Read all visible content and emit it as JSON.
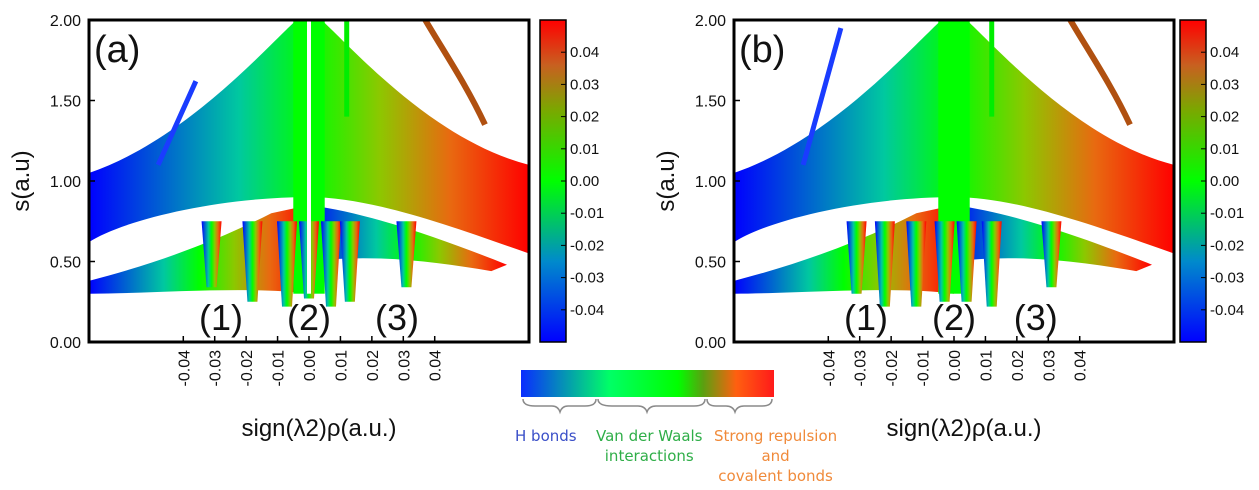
{
  "chart_data": [
    {
      "type": "scatter",
      "panel_label": "(a)",
      "xlabel": "sign(λ2)ρ(a.u.)",
      "ylabel": "s(a.u)",
      "x_ticks": [
        "-0.04",
        "-0.03",
        "-0.02",
        "-0.01",
        "0.00",
        "0.01",
        "0.02",
        "0.03",
        "0.04"
      ],
      "y_ticks": [
        "0.00",
        "0.50",
        "1.00",
        "1.50",
        "2.00"
      ],
      "xlim": [
        -0.07,
        0.07
      ],
      "ylim": [
        0.0,
        2.0
      ],
      "colorbar_ticks": [
        "0.04",
        "0.03",
        "0.02",
        "0.01",
        "0.00",
        "-0.01",
        "-0.02",
        "-0.03",
        "-0.04"
      ],
      "colorbar_range": [
        -0.05,
        0.05
      ],
      "region_labels": [
        {
          "text": "(1)",
          "x": -0.028
        },
        {
          "text": "(2)",
          "x": 0.0
        },
        {
          "text": "(3)",
          "x": 0.028
        }
      ],
      "spikes": [
        {
          "x": -0.031,
          "top": 0.34
        },
        {
          "x": -0.018,
          "top": 0.25
        },
        {
          "x": -0.007,
          "top": 0.22
        },
        {
          "x": 0.0,
          "top": 0.27
        },
        {
          "x": 0.007,
          "top": 0.22
        },
        {
          "x": 0.013,
          "top": 0.25
        },
        {
          "x": 0.031,
          "top": 0.34
        }
      ]
    },
    {
      "type": "scatter",
      "panel_label": "(b)",
      "xlabel": "sign(λ2)ρ(a.u.)",
      "ylabel": "s(a.u)",
      "x_ticks": [
        "-0.04",
        "-0.03",
        "-0.02",
        "-0.01",
        "0.00",
        "0.01",
        "0.02",
        "0.03",
        "0.04"
      ],
      "y_ticks": [
        "0.00",
        "0.50",
        "1.00",
        "1.50",
        "2.00"
      ],
      "xlim": [
        -0.07,
        0.07
      ],
      "ylim": [
        0.0,
        2.0
      ],
      "colorbar_ticks": [
        "0.04",
        "0.03",
        "0.02",
        "0.01",
        "0.00",
        "-0.01",
        "-0.02",
        "-0.03",
        "-0.04"
      ],
      "colorbar_range": [
        -0.05,
        0.05
      ],
      "region_labels": [
        {
          "text": "(1)",
          "x": -0.028
        },
        {
          "text": "(2)",
          "x": 0.0
        },
        {
          "text": "(3)",
          "x": 0.026
        }
      ],
      "spikes": [
        {
          "x": -0.031,
          "top": 0.3
        },
        {
          "x": -0.022,
          "top": 0.22
        },
        {
          "x": -0.012,
          "top": 0.22
        },
        {
          "x": -0.003,
          "top": 0.25
        },
        {
          "x": 0.004,
          "top": 0.25
        },
        {
          "x": 0.012,
          "top": 0.22
        },
        {
          "x": 0.031,
          "top": 0.34
        }
      ]
    }
  ],
  "legend": {
    "colors": [
      "#0a2dff",
      "#00ff00",
      "#ff1a1a"
    ],
    "items": [
      {
        "lines": [
          "H bonds"
        ],
        "color": "#3a4fc8"
      },
      {
        "lines": [
          "Van der Waals",
          "interactions"
        ],
        "color": "#2fae48"
      },
      {
        "lines": [
          "Strong repulsion",
          "and",
          "covalent bonds"
        ],
        "color": "#f08a3a"
      }
    ]
  },
  "colors": {
    "blue": "#0000ff",
    "green": "#00ff00",
    "red": "#ff0000"
  }
}
